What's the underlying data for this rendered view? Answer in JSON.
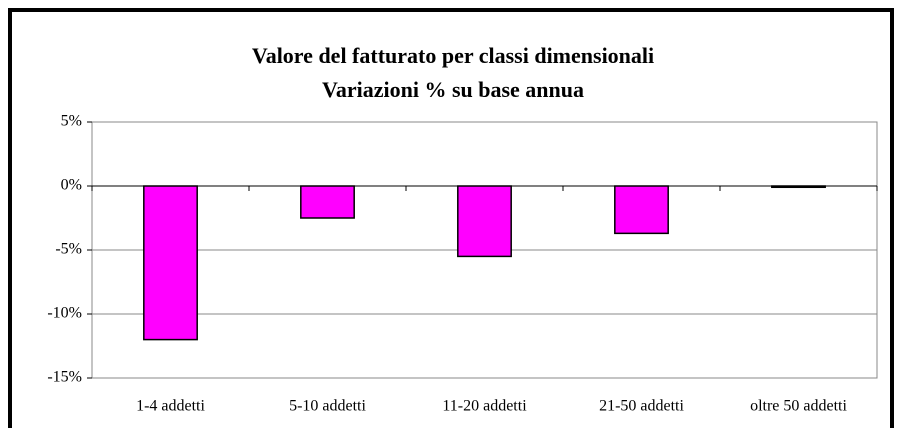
{
  "chart_data": {
    "type": "bar",
    "title": "Valore del fatturato per classi dimensionali",
    "subtitle": "Variazioni % su base annua",
    "categories": [
      "1-4 addetti",
      "5-10 addetti",
      "11-20 addetti",
      "21-50 addetti",
      "oltre 50 addetti"
    ],
    "values": [
      -12,
      -2.5,
      -5.5,
      -3.7,
      -0.1
    ],
    "color": "#ff00ff",
    "ylim": [
      -15,
      5
    ],
    "yticks": [
      {
        "value": 5,
        "label": "5%"
      },
      {
        "value": 0,
        "label": "0%"
      },
      {
        "value": -5,
        "label": "-5%"
      },
      {
        "value": -10,
        "label": "-10%"
      },
      {
        "value": -15,
        "label": "-15%"
      }
    ],
    "grid": true
  }
}
